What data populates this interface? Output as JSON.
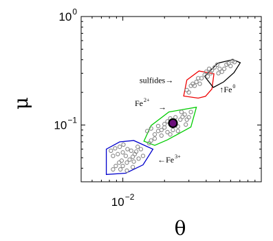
{
  "chart_data": {
    "type": "scatter",
    "title": "",
    "xlabel": "θ",
    "ylabel": "μ",
    "xscale": "log",
    "yscale": "log",
    "xlim": [
      0.005,
      0.1
    ],
    "ylim": [
      0.03,
      1
    ],
    "x_ticks": [
      {
        "value": 0.01,
        "base": "10",
        "exp": "−2"
      }
    ],
    "y_ticks": [
      {
        "value": 1,
        "base": "10",
        "exp": "0"
      },
      {
        "value": 0.1,
        "base": "10",
        "exp": "−1"
      }
    ],
    "grid": false,
    "points": [
      [
        0.0082,
        0.058
      ],
      [
        0.0088,
        0.061
      ],
      [
        0.0095,
        0.063
      ],
      [
        0.0101,
        0.066
      ],
      [
        0.0108,
        0.06
      ],
      [
        0.0115,
        0.058
      ],
      [
        0.0122,
        0.054
      ],
      [
        0.0128,
        0.063
      ],
      [
        0.0135,
        0.06
      ],
      [
        0.01,
        0.056
      ],
      [
        0.0092,
        0.054
      ],
      [
        0.0105,
        0.052
      ],
      [
        0.0118,
        0.051
      ],
      [
        0.0125,
        0.057
      ],
      [
        0.0085,
        0.052
      ],
      [
        0.0112,
        0.048
      ],
      [
        0.0098,
        0.047
      ],
      [
        0.012,
        0.046
      ],
      [
        0.0107,
        0.045
      ],
      [
        0.0094,
        0.045
      ],
      [
        0.0089,
        0.042
      ],
      [
        0.01,
        0.042
      ],
      [
        0.0085,
        0.039
      ],
      [
        0.0096,
        0.039
      ],
      [
        0.0107,
        0.038
      ],
      [
        0.0118,
        0.041
      ],
      [
        0.013,
        0.049
      ],
      [
        0.014,
        0.052
      ],
      [
        0.015,
        0.088
      ],
      [
        0.016,
        0.093
      ],
      [
        0.017,
        0.082
      ],
      [
        0.018,
        0.098
      ],
      [
        0.019,
        0.09
      ],
      [
        0.02,
        0.102
      ],
      [
        0.021,
        0.108
      ],
      [
        0.022,
        0.115
      ],
      [
        0.023,
        0.105
      ],
      [
        0.024,
        0.1
      ],
      [
        0.025,
        0.097
      ],
      [
        0.026,
        0.112
      ],
      [
        0.027,
        0.119
      ],
      [
        0.028,
        0.125
      ],
      [
        0.029,
        0.112
      ],
      [
        0.03,
        0.118
      ],
      [
        0.031,
        0.132
      ],
      [
        0.023,
        0.09
      ],
      [
        0.021,
        0.086
      ],
      [
        0.019,
        0.08
      ],
      [
        0.017,
        0.075
      ],
      [
        0.024,
        0.118
      ],
      [
        0.0265,
        0.132
      ],
      [
        0.02,
        0.095
      ],
      [
        0.018,
        0.088
      ],
      [
        0.025,
        0.088
      ],
      [
        0.022,
        0.082
      ],
      [
        0.0285,
        0.101
      ],
      [
        0.016,
        0.072
      ],
      [
        0.0155,
        0.068
      ],
      [
        0.029,
        0.21
      ],
      [
        0.031,
        0.23
      ],
      [
        0.032,
        0.24
      ],
      [
        0.034,
        0.25
      ],
      [
        0.03,
        0.2
      ],
      [
        0.033,
        0.23
      ],
      [
        0.035,
        0.27
      ],
      [
        0.036,
        0.24
      ],
      [
        0.037,
        0.27
      ],
      [
        0.039,
        0.29
      ],
      [
        0.04,
        0.31
      ],
      [
        0.042,
        0.33
      ],
      [
        0.044,
        0.32
      ],
      [
        0.046,
        0.34
      ],
      [
        0.048,
        0.36
      ],
      [
        0.05,
        0.33
      ],
      [
        0.052,
        0.31
      ],
      [
        0.054,
        0.33
      ],
      [
        0.058,
        0.37
      ],
      [
        0.06,
        0.35
      ],
      [
        0.049,
        0.3
      ],
      [
        0.043,
        0.3
      ],
      [
        0.041,
        0.28
      ],
      [
        0.062,
        0.39
      ],
      [
        0.064,
        0.38
      ],
      [
        0.056,
        0.36
      ]
    ],
    "highlight_point": [
      0.023,
      0.104
    ],
    "regions": [
      {
        "label": "Fe3+",
        "color": "#0000cc",
        "polygon": [
          [
            0.0076,
            0.035
          ],
          [
            0.0076,
            0.06
          ],
          [
            0.0095,
            0.07
          ],
          [
            0.012,
            0.072
          ],
          [
            0.0165,
            0.06
          ],
          [
            0.014,
            0.043
          ],
          [
            0.0105,
            0.036
          ]
        ]
      },
      {
        "label": "Fe2+",
        "color": "#00cc00",
        "polygon": [
          [
            0.0142,
            0.071
          ],
          [
            0.016,
            0.099
          ],
          [
            0.0215,
            0.132
          ],
          [
            0.034,
            0.146
          ],
          [
            0.031,
            0.096
          ],
          [
            0.021,
            0.073
          ],
          [
            0.017,
            0.065
          ]
        ]
      },
      {
        "label": "sulfides",
        "color": "#ee0000",
        "polygon": [
          [
            0.0275,
            0.185
          ],
          [
            0.029,
            0.26
          ],
          [
            0.0355,
            0.315
          ],
          [
            0.0455,
            0.297
          ],
          [
            0.044,
            0.215
          ],
          [
            0.0395,
            0.184
          ],
          [
            0.035,
            0.177
          ]
        ]
      },
      {
        "label": "Fe0",
        "color": "#000000",
        "polygon": [
          [
            0.039,
            0.281
          ],
          [
            0.0485,
            0.372
          ],
          [
            0.0625,
            0.401
          ],
          [
            0.0705,
            0.375
          ],
          [
            0.0635,
            0.304
          ],
          [
            0.0535,
            0.25
          ],
          [
            0.045,
            0.222
          ]
        ]
      }
    ],
    "annotations": [
      {
        "text": "sulfides→",
        "x": 0.0132,
        "y": 0.245
      },
      {
        "text": "↑Fe",
        "sup": "0",
        "x": 0.05,
        "y": 0.2
      },
      {
        "text": "Fe",
        "sup": "2+",
        "x": 0.0122,
        "y": 0.15
      },
      {
        "text": "→",
        "x": 0.018,
        "y": 0.138
      },
      {
        "text": "←Fe",
        "sup": "3+",
        "x": 0.0178,
        "y": 0.045
      }
    ]
  }
}
